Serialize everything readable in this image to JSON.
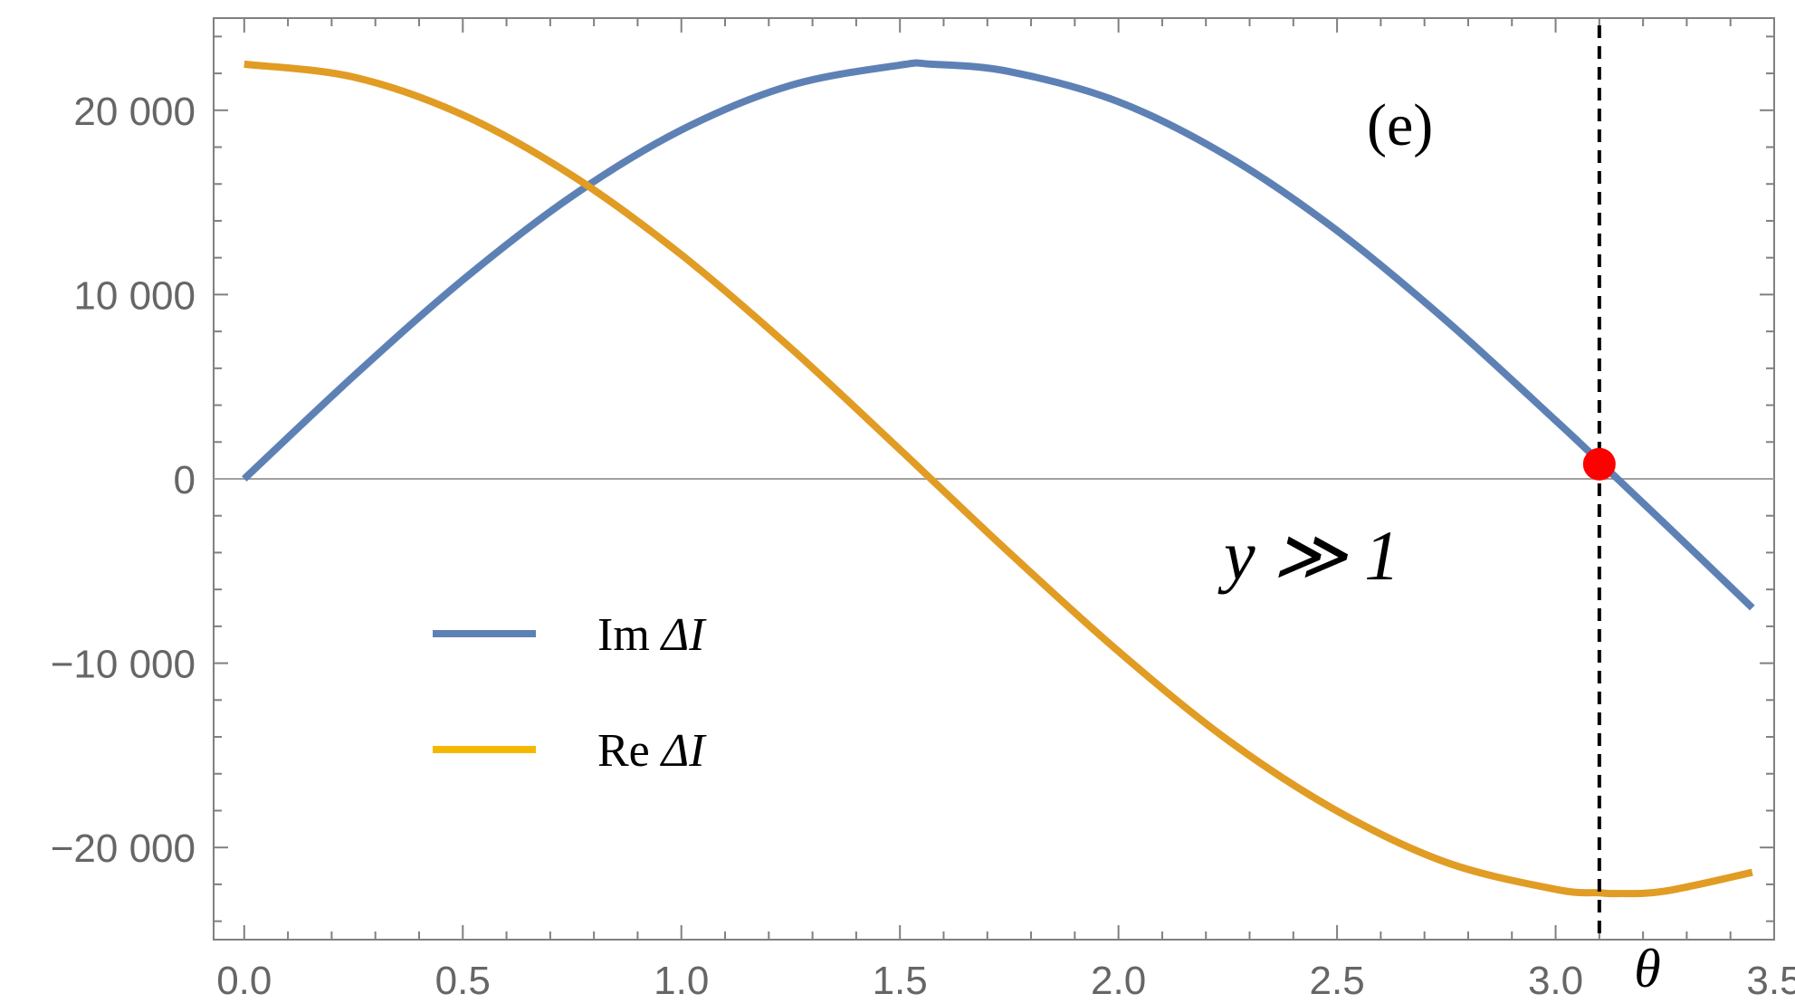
{
  "chart_data": {
    "type": "line",
    "xlim": [
      -0.07,
      3.5
    ],
    "ylim": [
      -25000,
      25000
    ],
    "x_ticks": [
      0.0,
      0.5,
      1.0,
      1.5,
      2.0,
      2.5,
      3.0,
      3.5
    ],
    "x_tick_labels": [
      "0.0",
      "0.5",
      "1.0",
      "1.5",
      "2.0",
      "2.5",
      "3.0",
      "3.5"
    ],
    "y_ticks": [
      20000,
      10000,
      0,
      -10000,
      -20000
    ],
    "y_tick_labels": [
      "20 000",
      "10 000",
      "0",
      "−10 000",
      "−20 000"
    ],
    "xlabel": "θ",
    "ylabel": "",
    "grid": false,
    "frame": true,
    "legend": {
      "placement": "lower-left",
      "entries": [
        {
          "prefix": "Im ",
          "label": "ΔI",
          "series": "Im ΔI"
        },
        {
          "prefix": "Re ",
          "label": "ΔI",
          "series": "Re ΔI"
        }
      ]
    },
    "series": [
      {
        "name": "Im ΔI",
        "color": "#5e81b5",
        "x": [
          0.0,
          0.25,
          0.5,
          0.75,
          1.0,
          1.25,
          1.5,
          1.5708,
          1.75,
          2.0,
          2.25,
          2.5,
          2.75,
          3.0,
          3.1,
          3.25,
          3.45
        ],
        "y": [
          0,
          5570,
          10790,
          15340,
          18930,
          21350,
          22450,
          22500,
          22100,
          20460,
          17500,
          13470,
          8580,
          3170,
          940,
          -2440,
          -7000
        ]
      },
      {
        "name": "Re ΔI",
        "color": "#e19c24",
        "x": [
          0.0,
          0.25,
          0.5,
          0.75,
          1.0,
          1.25,
          1.5,
          1.5708,
          1.75,
          2.0,
          2.25,
          2.5,
          2.75,
          3.0,
          3.1,
          3.1416,
          3.25,
          3.45
        ],
        "y": [
          22500,
          21800,
          19750,
          16460,
          12160,
          7100,
          1590,
          0,
          -4000,
          -9360,
          -14170,
          -18020,
          -20810,
          -22270,
          -22460,
          -22500,
          -22370,
          -21350
        ]
      }
    ],
    "annotations": [
      {
        "type": "panel-label",
        "text": "(e)"
      },
      {
        "type": "text",
        "text": "y ≫ 1"
      },
      {
        "type": "vertical-dashed-line",
        "x": 3.1,
        "color": "#000000"
      },
      {
        "type": "point",
        "x": 3.1,
        "y": 800,
        "color": "#ff0000"
      },
      {
        "type": "horizontal-line",
        "y": 0,
        "color": "#a0a0a0"
      }
    ]
  }
}
